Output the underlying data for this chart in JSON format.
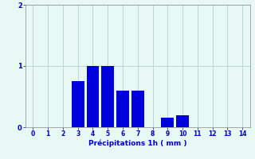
{
  "categories": [
    0,
    1,
    2,
    3,
    4,
    5,
    6,
    7,
    8,
    9,
    10,
    11,
    12,
    13,
    14
  ],
  "values": [
    0,
    0,
    0,
    0.75,
    1.0,
    1.0,
    0.6,
    0.6,
    0,
    0.15,
    0.2,
    0,
    0,
    0,
    0
  ],
  "bar_color": "#0000dd",
  "background_color": "#e8f8f5",
  "grid_color": "#aacccc",
  "xlabel": "Précipitations 1h ( mm )",
  "xlabel_color": "#0000cc",
  "tick_color": "#0000cc",
  "axis_color": "#888888",
  "ylim": [
    0,
    2
  ],
  "yticks": [
    0,
    1,
    2
  ],
  "xlim": [
    -0.5,
    14.5
  ],
  "bar_width": 0.85,
  "tick_fontsize": 5.5,
  "xlabel_fontsize": 6.5
}
